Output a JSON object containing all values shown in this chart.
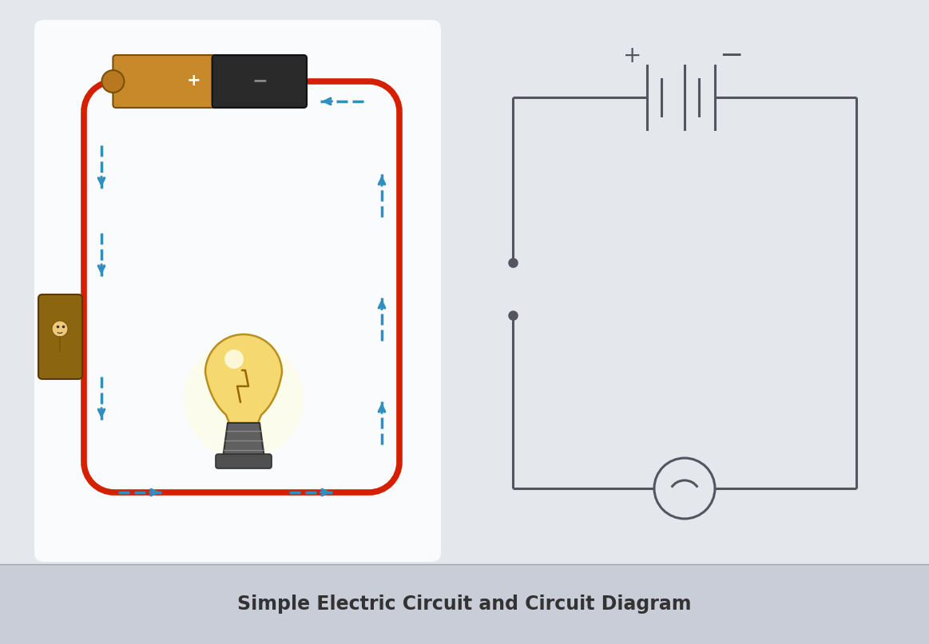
{
  "title": "Simple Electric Circuit and Circuit Diagram",
  "title_fontsize": 17,
  "bg_top": "#e4e7ec",
  "bg_footer": "#c8cdd8",
  "wire_color": "#d42000",
  "arrow_color": "#2e8fc0",
  "cc": "#555560",
  "battery_gold": "#c8892a",
  "battery_dark": "#2a2a2a",
  "bulb_yellow": "#f5d870",
  "bulb_edge": "#b89020",
  "base_gray": "#5a5a5a",
  "switch_brown": "#8B6510",
  "footer_text": "#333333",
  "white": "#ffffff"
}
